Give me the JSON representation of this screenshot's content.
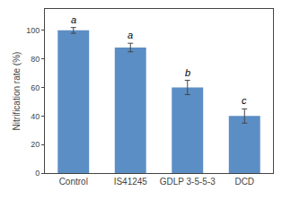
{
  "chart_data": {
    "type": "bar",
    "categories": [
      "Control",
      "IS41245",
      "GDLP 3-5-5-3",
      "DCD"
    ],
    "values": [
      100,
      88,
      60,
      40
    ],
    "errors": [
      2,
      3,
      5,
      5
    ],
    "annotations": [
      "a",
      "a",
      "b",
      "c"
    ],
    "color": "#5b8ec4",
    "ylabel": "Nitrification rate (%)",
    "ylim": [
      0,
      115
    ],
    "yticks": [
      0,
      20,
      40,
      60,
      80,
      100
    ],
    "grid": false
  }
}
